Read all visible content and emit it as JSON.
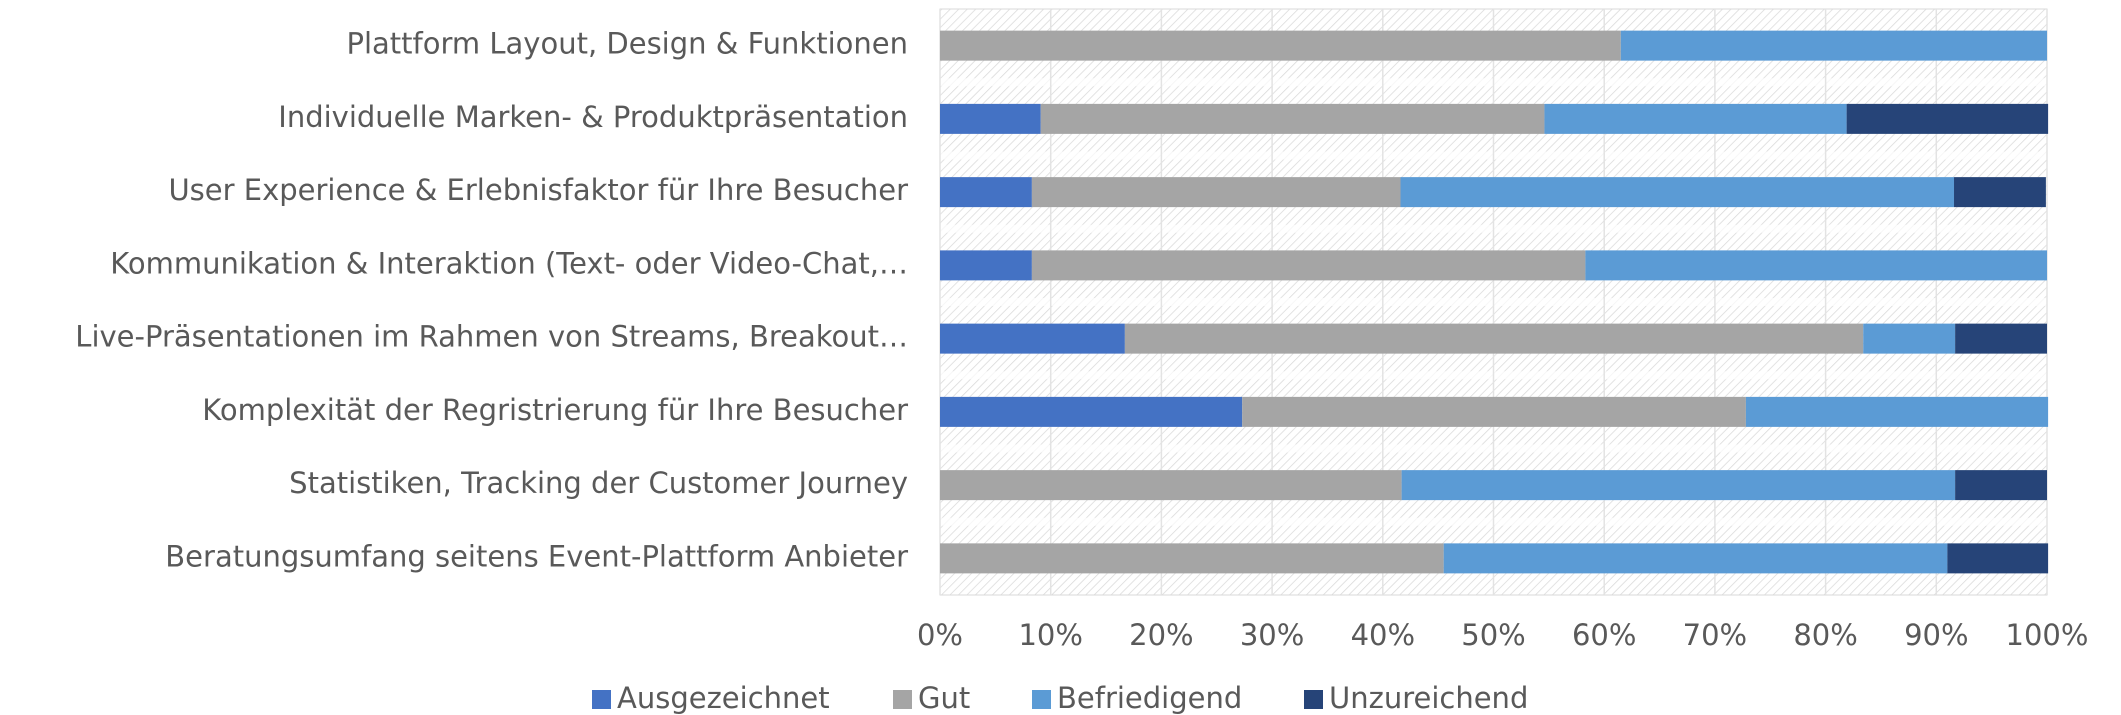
{
  "chart_data": {
    "type": "stacked-barh",
    "categories": [
      "Plattform Layout, Design & Funktionen",
      "Individuelle Marken- & Produktpräsentation",
      "User Experience & Erlebnisfaktor für Ihre Besucher",
      "Kommunikation & Interaktion (Text- oder Video-Chat,…",
      "Live-Präsentationen im Rahmen von Streams, Breakout…",
      "Komplexität der Regristrierung für Ihre Besucher",
      "Statistiken, Tracking der Customer Journey",
      "Beratungsumfang seitens Event-Plattform Anbieter"
    ],
    "series": [
      {
        "name": "Ausgezeichnet",
        "color": "#4472c4",
        "values": [
          0,
          9.1,
          8.3,
          8.3,
          16.7,
          27.3,
          0,
          0
        ]
      },
      {
        "name": "Gut",
        "color": "#a5a5a5",
        "values": [
          61.5,
          45.5,
          33.3,
          50,
          66.7,
          45.5,
          41.7,
          45.5
        ]
      },
      {
        "name": "Befriedigend",
        "color": "#5b9bd5",
        "values": [
          38.5,
          27.3,
          50,
          41.7,
          8.3,
          27.3,
          50,
          45.5
        ]
      },
      {
        "name": "Unzureichend",
        "color": "#264478",
        "values": [
          0,
          18.2,
          8.3,
          0,
          8.3,
          0,
          8.3,
          9.1
        ]
      }
    ],
    "xlim": [
      0,
      100
    ],
    "xticks": [
      {
        "value": 0,
        "label": "0%"
      },
      {
        "value": 10,
        "label": "10%"
      },
      {
        "value": 20,
        "label": "20%"
      },
      {
        "value": 30,
        "label": "30%"
      },
      {
        "value": 40,
        "label": "40%"
      },
      {
        "value": 50,
        "label": "50%"
      },
      {
        "value": 60,
        "label": "60%"
      },
      {
        "value": 70,
        "label": "70%"
      },
      {
        "value": 80,
        "label": "80%"
      },
      {
        "value": 90,
        "label": "90%"
      },
      {
        "value": 100,
        "label": "100%"
      }
    ],
    "grid": true,
    "legend": "bottom"
  }
}
